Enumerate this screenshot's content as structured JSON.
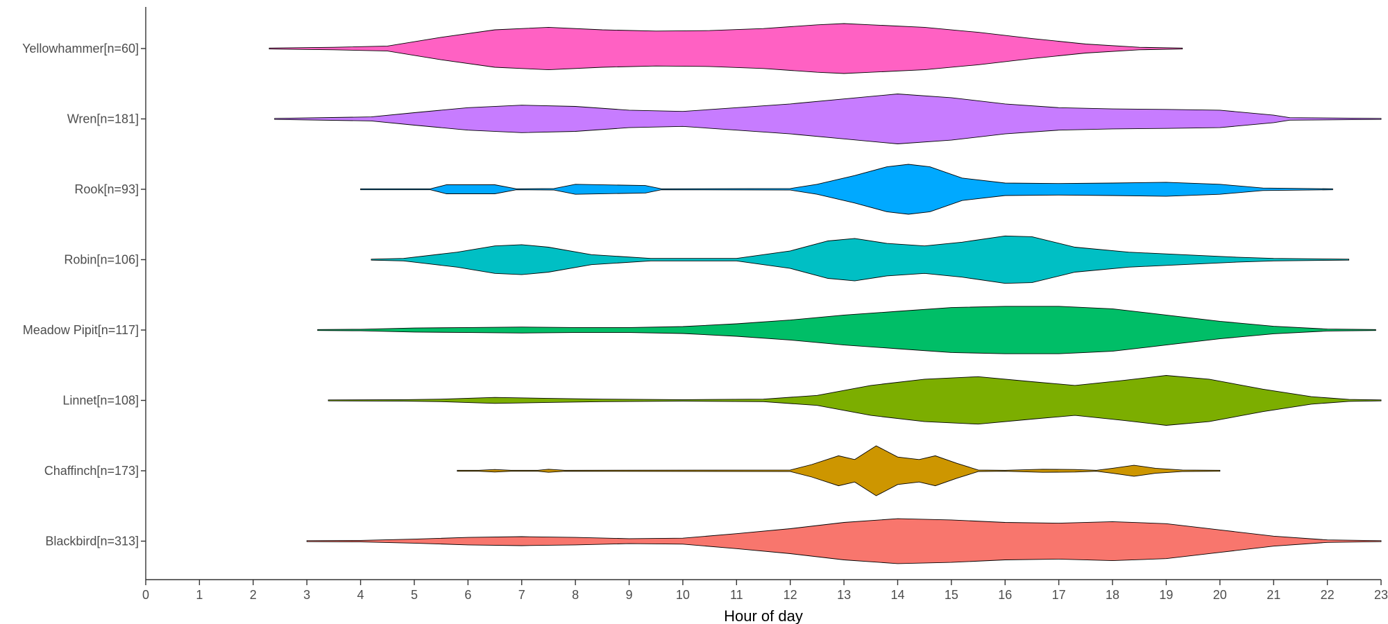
{
  "chart_data": {
    "type": "violin",
    "orientation": "horizontal",
    "xlabel": "Hour of day",
    "ylabel": "",
    "xlim": [
      0,
      23
    ],
    "xticks": [
      0,
      1,
      2,
      3,
      4,
      5,
      6,
      7,
      8,
      9,
      10,
      11,
      12,
      13,
      14,
      15,
      16,
      17,
      18,
      19,
      20,
      21,
      22,
      23
    ],
    "grid": false,
    "legend": "none",
    "series": [
      {
        "label": "Yellowhammer[n=60]",
        "color": "#FF61C3",
        "range": [
          2.3,
          19.3
        ],
        "density": [
          [
            2.3,
            0.02
          ],
          [
            3.5,
            0.05
          ],
          [
            4.5,
            0.1
          ],
          [
            5.5,
            0.45
          ],
          [
            6.5,
            0.75
          ],
          [
            7.5,
            0.85
          ],
          [
            8.5,
            0.75
          ],
          [
            9.5,
            0.7
          ],
          [
            10.5,
            0.72
          ],
          [
            11.5,
            0.8
          ],
          [
            12.5,
            0.95
          ],
          [
            13,
            1.0
          ],
          [
            13.5,
            0.95
          ],
          [
            14.5,
            0.85
          ],
          [
            15.5,
            0.65
          ],
          [
            16.5,
            0.4
          ],
          [
            17.5,
            0.18
          ],
          [
            18.5,
            0.05
          ],
          [
            19.3,
            0.02
          ]
        ]
      },
      {
        "label": "Wren[n=181]",
        "color": "#C77CFF",
        "range": [
          2.4,
          23
        ],
        "density": [
          [
            2.4,
            0.02
          ],
          [
            4.2,
            0.08
          ],
          [
            5,
            0.25
          ],
          [
            6,
            0.45
          ],
          [
            7,
            0.55
          ],
          [
            8,
            0.5
          ],
          [
            9,
            0.35
          ],
          [
            10,
            0.3
          ],
          [
            11,
            0.45
          ],
          [
            12,
            0.6
          ],
          [
            13,
            0.8
          ],
          [
            14,
            1.0
          ],
          [
            15,
            0.85
          ],
          [
            16,
            0.6
          ],
          [
            17,
            0.45
          ],
          [
            18,
            0.4
          ],
          [
            19,
            0.38
          ],
          [
            20,
            0.35
          ],
          [
            21,
            0.15
          ],
          [
            21.3,
            0.05
          ],
          [
            23,
            0.02
          ]
        ]
      },
      {
        "label": "Rook[n=93]",
        "color": "#00A9FF",
        "range": [
          4.0,
          22.1
        ],
        "density": [
          [
            4,
            0.02
          ],
          [
            5.3,
            0.02
          ],
          [
            5.6,
            0.18
          ],
          [
            6.5,
            0.18
          ],
          [
            6.9,
            0.02
          ],
          [
            7.6,
            0.03
          ],
          [
            8,
            0.2
          ],
          [
            9.3,
            0.15
          ],
          [
            9.6,
            0.02
          ],
          [
            12,
            0.03
          ],
          [
            12.5,
            0.2
          ],
          [
            13.2,
            0.55
          ],
          [
            13.8,
            0.9
          ],
          [
            14.2,
            1.0
          ],
          [
            14.6,
            0.9
          ],
          [
            15.2,
            0.45
          ],
          [
            16,
            0.25
          ],
          [
            17,
            0.23
          ],
          [
            18,
            0.25
          ],
          [
            19,
            0.28
          ],
          [
            20,
            0.2
          ],
          [
            20.8,
            0.05
          ],
          [
            22.1,
            0.02
          ]
        ]
      },
      {
        "label": "Robin[n=106]",
        "color": "#00BFC4",
        "range": [
          4.2,
          22.4
        ],
        "density": [
          [
            4.2,
            0.02
          ],
          [
            4.8,
            0.05
          ],
          [
            5.8,
            0.3
          ],
          [
            6.5,
            0.55
          ],
          [
            7,
            0.6
          ],
          [
            7.5,
            0.5
          ],
          [
            8.3,
            0.2
          ],
          [
            9.4,
            0.05
          ],
          [
            11,
            0.05
          ],
          [
            12,
            0.35
          ],
          [
            12.7,
            0.75
          ],
          [
            13.2,
            0.85
          ],
          [
            13.8,
            0.65
          ],
          [
            14.5,
            0.55
          ],
          [
            15.2,
            0.7
          ],
          [
            16,
            0.95
          ],
          [
            16.5,
            0.92
          ],
          [
            17.3,
            0.5
          ],
          [
            18.3,
            0.3
          ],
          [
            19.3,
            0.2
          ],
          [
            20.3,
            0.1
          ],
          [
            21,
            0.05
          ],
          [
            22.4,
            0.02
          ]
        ]
      },
      {
        "label": "Meadow Pipit[n=117]",
        "color": "#00BE67",
        "range": [
          3.2,
          22.9
        ],
        "density": [
          [
            3.2,
            0.02
          ],
          [
            4,
            0.03
          ],
          [
            5,
            0.08
          ],
          [
            6,
            0.1
          ],
          [
            7,
            0.12
          ],
          [
            8,
            0.1
          ],
          [
            9,
            0.1
          ],
          [
            10,
            0.14
          ],
          [
            11,
            0.25
          ],
          [
            12,
            0.4
          ],
          [
            13,
            0.6
          ],
          [
            14,
            0.75
          ],
          [
            15,
            0.9
          ],
          [
            16,
            0.95
          ],
          [
            17,
            0.95
          ],
          [
            18,
            0.85
          ],
          [
            19,
            0.6
          ],
          [
            20,
            0.35
          ],
          [
            21,
            0.15
          ],
          [
            22,
            0.04
          ],
          [
            22.9,
            0.02
          ]
        ]
      },
      {
        "label": "Linnet[n=108]",
        "color": "#7CAE00",
        "range": [
          3.4,
          23
        ],
        "density": [
          [
            3.4,
            0.02
          ],
          [
            4.8,
            0.03
          ],
          [
            5.5,
            0.05
          ],
          [
            6.5,
            0.12
          ],
          [
            7.5,
            0.08
          ],
          [
            8.5,
            0.05
          ],
          [
            10,
            0.03
          ],
          [
            11.5,
            0.05
          ],
          [
            12.5,
            0.2
          ],
          [
            13.5,
            0.6
          ],
          [
            14.5,
            0.85
          ],
          [
            15.5,
            0.95
          ],
          [
            16.5,
            0.75
          ],
          [
            17.3,
            0.6
          ],
          [
            18.2,
            0.8
          ],
          [
            19,
            1.0
          ],
          [
            19.8,
            0.85
          ],
          [
            20.8,
            0.45
          ],
          [
            21.7,
            0.15
          ],
          [
            22.4,
            0.04
          ],
          [
            23,
            0.02
          ]
        ]
      },
      {
        "label": "Chaffinch[n=173]",
        "color": "#CD9600",
        "range": [
          5.8,
          20.0
        ],
        "density": [
          [
            5.8,
            0.02
          ],
          [
            6.2,
            0.02
          ],
          [
            6.5,
            0.05
          ],
          [
            6.8,
            0.02
          ],
          [
            7.3,
            0.02
          ],
          [
            7.5,
            0.06
          ],
          [
            7.8,
            0.02
          ],
          [
            12,
            0.03
          ],
          [
            12.4,
            0.25
          ],
          [
            12.9,
            0.6
          ],
          [
            13.2,
            0.45
          ],
          [
            13.6,
            1.0
          ],
          [
            14,
            0.55
          ],
          [
            14.4,
            0.45
          ],
          [
            14.7,
            0.6
          ],
          [
            15.1,
            0.3
          ],
          [
            15.5,
            0.03
          ],
          [
            16,
            0.02
          ],
          [
            16.7,
            0.06
          ],
          [
            17.3,
            0.05
          ],
          [
            17.7,
            0.02
          ],
          [
            18,
            0.1
          ],
          [
            18.4,
            0.22
          ],
          [
            18.8,
            0.1
          ],
          [
            19.3,
            0.03
          ],
          [
            20,
            0.02
          ]
        ]
      },
      {
        "label": "Blackbird[n=313]",
        "color": "#F8766D",
        "range": [
          3.0,
          23
        ],
        "density": [
          [
            3,
            0.02
          ],
          [
            4,
            0.03
          ],
          [
            5,
            0.08
          ],
          [
            6,
            0.15
          ],
          [
            7,
            0.18
          ],
          [
            8,
            0.15
          ],
          [
            9,
            0.1
          ],
          [
            10,
            0.12
          ],
          [
            11,
            0.3
          ],
          [
            12,
            0.5
          ],
          [
            13,
            0.75
          ],
          [
            14,
            0.9
          ],
          [
            15,
            0.85
          ],
          [
            16,
            0.75
          ],
          [
            17,
            0.72
          ],
          [
            18,
            0.78
          ],
          [
            19,
            0.7
          ],
          [
            20,
            0.45
          ],
          [
            21,
            0.2
          ],
          [
            22,
            0.05
          ],
          [
            23,
            0.02
          ]
        ]
      }
    ]
  }
}
